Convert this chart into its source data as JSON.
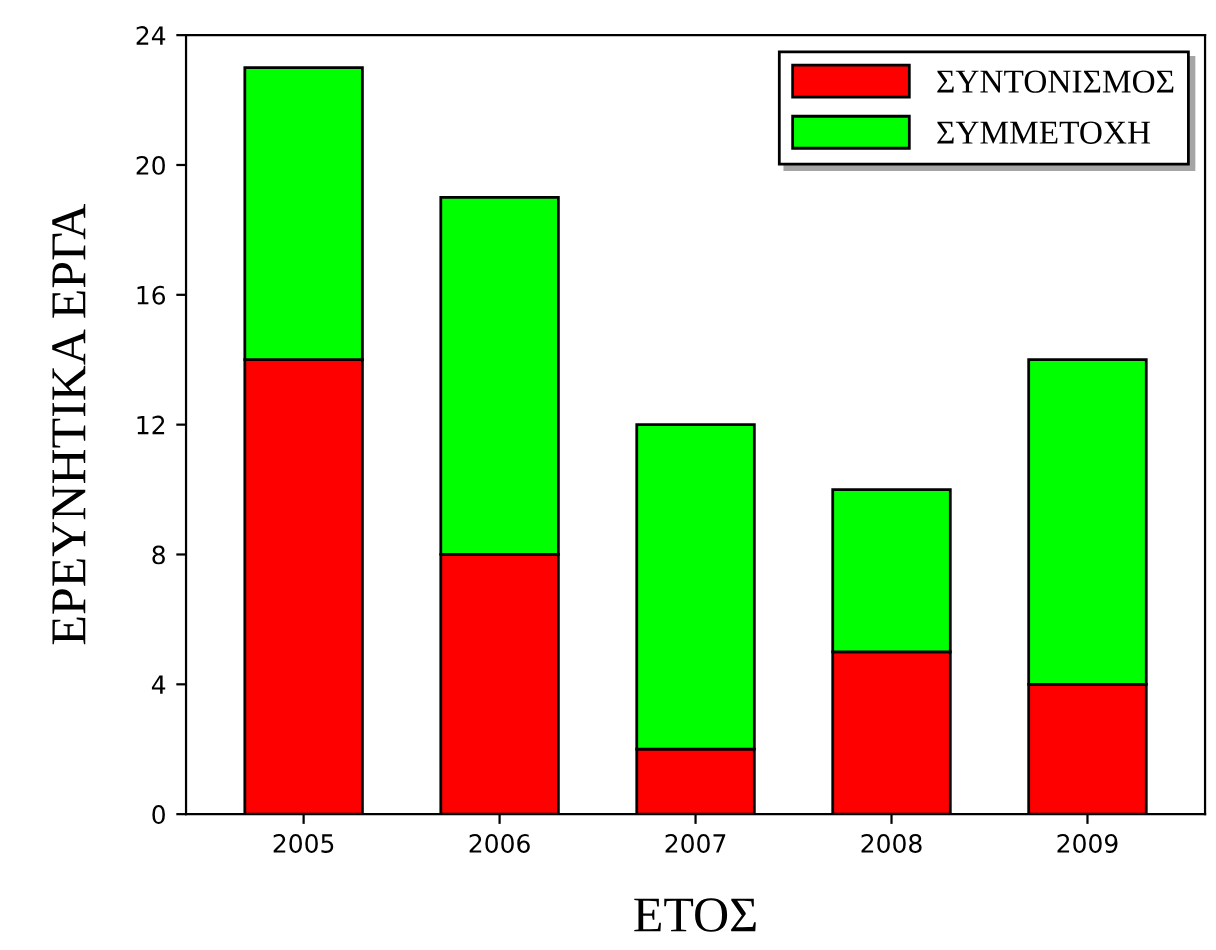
{
  "chart_data": {
    "type": "bar",
    "stacked": true,
    "xlabel": "ΕΤΟΣ",
    "ylabel": "ΕΡΕΥΝΗΤΙΚΑ ΕΡΓΑ",
    "categories": [
      "2005",
      "2006",
      "2007",
      "2008",
      "2009"
    ],
    "series": [
      {
        "name": "ΣΥΝΤΟΝΙΣΜΟΣ",
        "color": "#ff0000",
        "values": [
          14,
          8,
          2,
          5,
          4
        ]
      },
      {
        "name": "ΣΥΜΜΕΤΟΧΗ",
        "color": "#00ff00",
        "values": [
          9,
          11,
          10,
          5,
          10
        ]
      }
    ],
    "ylim": [
      0,
      24
    ],
    "yticks": [
      0,
      4,
      8,
      12,
      16,
      20,
      24
    ],
    "grid": false,
    "legend": "top right"
  }
}
